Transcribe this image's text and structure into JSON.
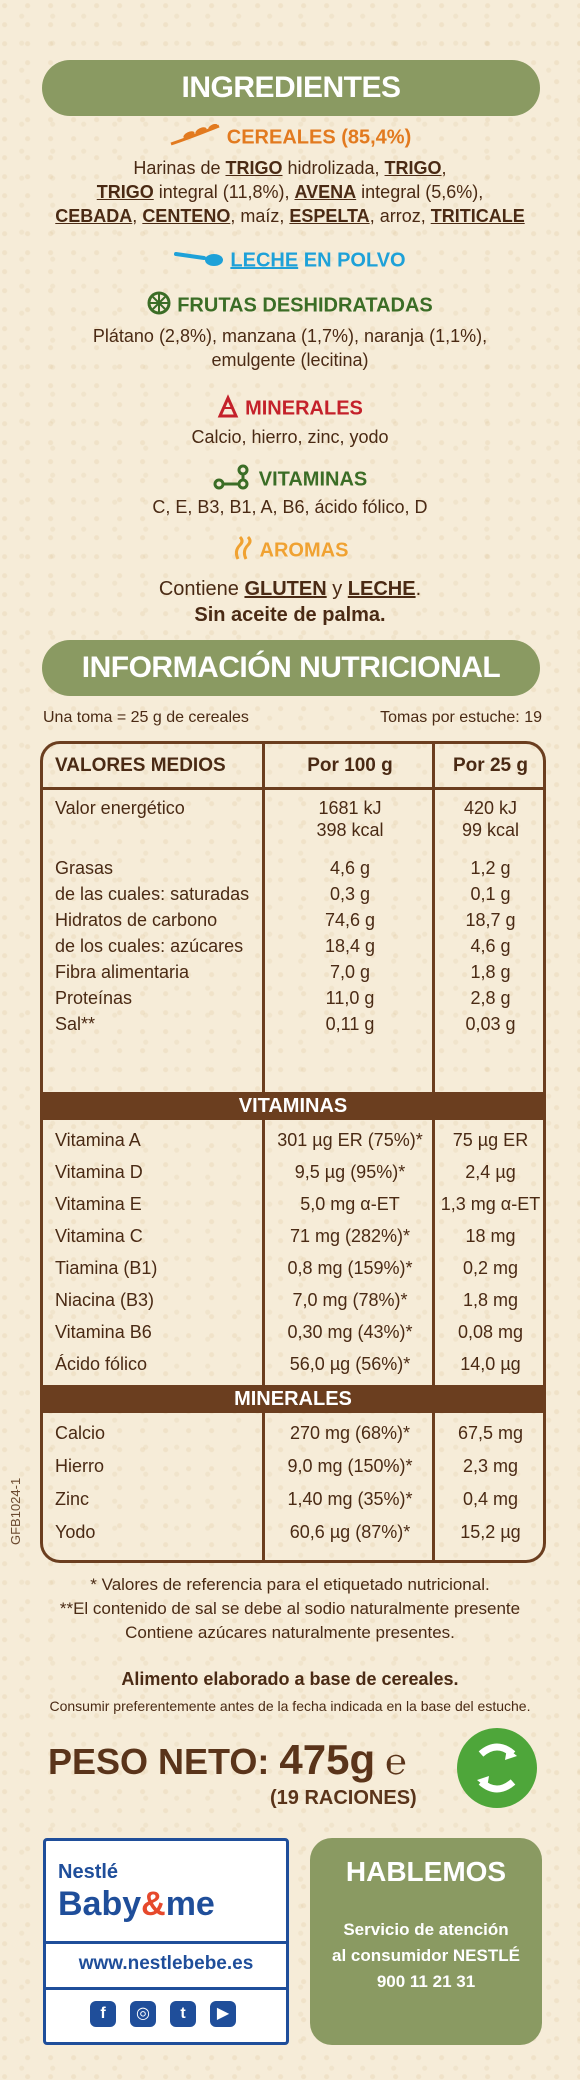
{
  "ingredients": {
    "title": "INGREDIENTES",
    "cereales_head": "CEREALES (85,4%)",
    "cereales_lines": [
      [
        "Harinas de ",
        "TRIGO",
        " hidrolizada, ",
        "TRIGO",
        ","
      ],
      [
        "TRIGO",
        " integral (11,8%), ",
        "AVENA",
        " integral (5,6%),"
      ],
      [
        "CEBADA",
        ", ",
        "CENTENO",
        ", maíz, ",
        "ESPELTA",
        ", arroz, ",
        "TRITICALE"
      ]
    ],
    "leche_head_a": "LECHE",
    "leche_head_b": " EN POLVO",
    "frutas_head": "FRUTAS DESHIDRATADAS",
    "frutas_line1": "Plátano (2,8%), manzana (1,7%), naranja (1,1%),",
    "frutas_line2": "emulgente (lecitina)",
    "minerales_head": "MINERALES",
    "minerales_line": "Calcio, hierro, zinc, yodo",
    "vitaminas_head": "VITAMINAS",
    "vitaminas_line": "C, E, B3, B1, A, B6, ácido fólico, D",
    "aromas_head": "AROMAS",
    "contiene_a": "Contiene ",
    "contiene_b": "GLUTEN",
    "contiene_c": " y ",
    "contiene_d": "LECHE",
    "contiene_e": ".",
    "sin_aceite": "Sin aceite de palma."
  },
  "nutrition": {
    "title": "INFORMACIÓN NUTRICIONAL",
    "serving": "Una toma = 25 g de cereales",
    "servings_per": "Tomas por estuche: 19",
    "headers": [
      "VALORES MEDIOS",
      "Por 100 g",
      "Por 25 g"
    ],
    "rows": [
      {
        "label": "Valor energético",
        "v100": "1681 kJ",
        "v25": "420 kJ"
      },
      {
        "label": "",
        "v100": "398 kcal",
        "v25": "99 kcal"
      },
      {
        "label": "Grasas",
        "v100": "4,6 g",
        "v25": "1,2 g"
      },
      {
        "label": "de las cuales: saturadas",
        "v100": "0,3 g",
        "v25": "0,1 g"
      },
      {
        "label": "Hidratos de carbono",
        "v100": "74,6 g",
        "v25": "18,7 g"
      },
      {
        "label": "de los cuales: azúcares",
        "v100": "18,4 g",
        "v25": "4,6 g"
      },
      {
        "label": "Fibra alimentaria",
        "v100": "7,0 g",
        "v25": "1,8 g"
      },
      {
        "label": "Proteínas",
        "v100": "11,0 g",
        "v25": "2,8 g"
      },
      {
        "label": "Sal**",
        "v100": "0,11 g",
        "v25": "0,03 g"
      }
    ],
    "vitaminas_band": "VITAMINAS",
    "vitaminas": [
      {
        "label": "Vitamina A",
        "v100": "301 µg ER (75%)*",
        "v25": "75 µg ER"
      },
      {
        "label": "Vitamina D",
        "v100": "9,5 µg (95%)*",
        "v25": "2,4 µg"
      },
      {
        "label": "Vitamina E",
        "v100": "5,0 mg α-ET",
        "v25": "1,3 mg α-ET"
      },
      {
        "label": "Vitamina C",
        "v100": "71 mg (282%)*",
        "v25": "18 mg"
      },
      {
        "label": "Tiamina (B1)",
        "v100": "0,8 mg (159%)*",
        "v25": "0,2 mg"
      },
      {
        "label": "Niacina (B3)",
        "v100": "7,0 mg (78%)*",
        "v25": "1,8 mg"
      },
      {
        "label": "Vitamina B6",
        "v100": "0,30 mg (43%)*",
        "v25": "0,08 mg"
      },
      {
        "label": "Ácido fólico",
        "v100": "56,0 µg (56%)*",
        "v25": "14,0 µg"
      }
    ],
    "minerales_band": "MINERALES",
    "minerales": [
      {
        "label": "Calcio",
        "v100": "270 mg (68%)*",
        "v25": "67,5 mg"
      },
      {
        "label": "Hierro",
        "v100": "9,0 mg (150%)*",
        "v25": "2,3 mg"
      },
      {
        "label": "Zinc",
        "v100": "1,40 mg (35%)*",
        "v25": "0,4 mg"
      },
      {
        "label": "Yodo",
        "v100": "60,6 µg (87%)*",
        "v25": "15,2 µg"
      }
    ],
    "footnotes": [
      "* Valores de referencia para el etiquetado nutricional.",
      "**El contenido de sal se debe al sodio naturalmente presente",
      "Contiene azúcares naturalmente presentes."
    ]
  },
  "side_code": "GFB1024-1",
  "product": {
    "alimento": "Alimento elaborado a base de cereales.",
    "consumir": "Consumir preferentemente antes de la fecha indicada en la base del estuche.",
    "peso_label": "PESO NETO:",
    "peso_value": "475g",
    "peso_e": "℮",
    "raciones": "(19 RACIONES)"
  },
  "brand": {
    "nestle": "Nestlé",
    "baby": "Baby",
    "amp": "&",
    "me": "me",
    "website": "www.nestlebebe.es",
    "social": [
      "f",
      "◎",
      "t",
      "▶"
    ]
  },
  "contact": {
    "title": "HABLEMOS",
    "line1": "Servicio de atención",
    "line2": "al consumidor NESTLÉ",
    "phone": "900 11 21 31"
  },
  "colors": {
    "banner": "#8a9a62",
    "brown": "#6b3e1f",
    "cereal_orange": "#e27a1f",
    "leche_blue": "#1ea1d8",
    "frutas_green": "#3b6d26",
    "minerales_red": "#c4212a",
    "aromas_orange": "#f0a232",
    "brand_blue": "#1f4e9a"
  }
}
